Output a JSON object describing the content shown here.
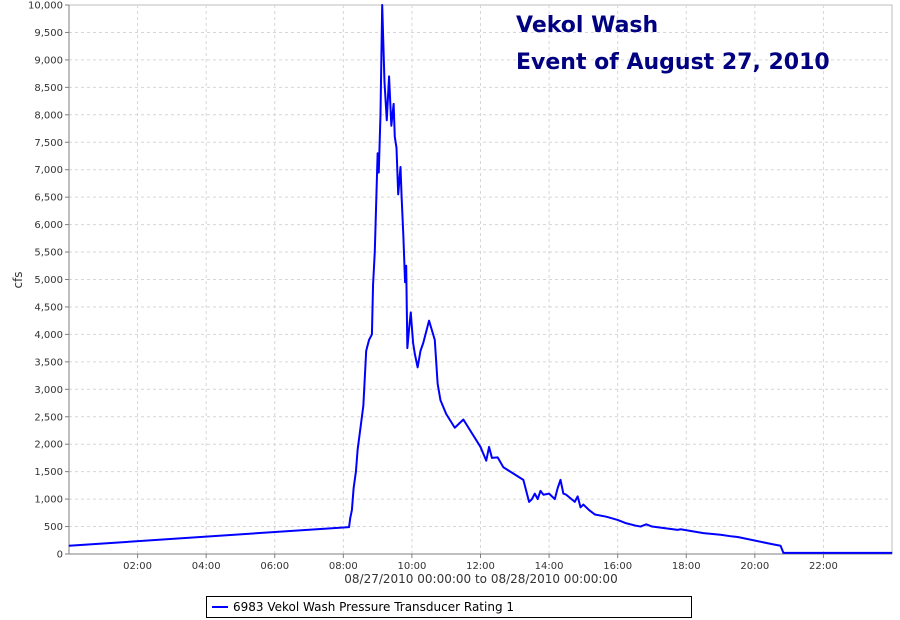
{
  "chart_data": {
    "type": "line",
    "title": "Vekol Wash",
    "subtitle": "Event of August 27, 2010",
    "xlabel": "08/27/2010 00:00:00 to 08/28/2010 00:00:00",
    "ylabel": "cfs",
    "xlim": [
      "00:00",
      "24:00"
    ],
    "ylim": [
      0,
      10000
    ],
    "x_ticks": [
      "02:00",
      "04:00",
      "06:00",
      "08:00",
      "10:00",
      "12:00",
      "14:00",
      "16:00",
      "18:00",
      "20:00",
      "22:00"
    ],
    "y_ticks": [
      "0",
      "500",
      "1,000",
      "1,500",
      "2,000",
      "2,500",
      "3,000",
      "3,500",
      "4,000",
      "4,500",
      "5,000",
      "5,500",
      "6,000",
      "6,500",
      "7,000",
      "7,500",
      "8,000",
      "8,500",
      "9,000",
      "9,500",
      "10,000"
    ],
    "grid": true,
    "legend_position": "bottom",
    "series": [
      {
        "name": "6983 Vekol Wash Pressure Transducer Rating 1",
        "color": "#0000ff",
        "x": [
          "00:00",
          "08:10",
          "08:12",
          "08:15",
          "08:18",
          "08:22",
          "08:25",
          "08:30",
          "08:35",
          "08:40",
          "08:45",
          "08:50",
          "08:52",
          "08:55",
          "09:00",
          "09:02",
          "09:05",
          "09:08",
          "09:12",
          "09:16",
          "09:20",
          "09:24",
          "09:28",
          "09:30",
          "09:33",
          "09:36",
          "09:40",
          "09:42",
          "09:45",
          "09:48",
          "09:50",
          "09:52",
          "09:55",
          "09:58",
          "10:02",
          "10:05",
          "10:10",
          "10:15",
          "10:20",
          "10:30",
          "10:40",
          "10:45",
          "10:50",
          "11:00",
          "11:15",
          "11:30",
          "12:00",
          "12:10",
          "12:15",
          "12:20",
          "12:30",
          "12:40",
          "13:15",
          "13:20",
          "13:25",
          "13:30",
          "13:35",
          "13:40",
          "13:45",
          "13:50",
          "14:00",
          "14:05",
          "14:10",
          "14:15",
          "14:20",
          "14:25",
          "14:30",
          "14:45",
          "14:50",
          "14:55",
          "15:00",
          "15:10",
          "15:20",
          "15:40",
          "16:00",
          "16:15",
          "16:30",
          "16:40",
          "16:50",
          "17:00",
          "17:45",
          "17:50",
          "18:30",
          "19:00",
          "19:20",
          "19:30",
          "20:30",
          "20:45",
          "20:50",
          "24:00"
        ],
        "values": [
          150,
          490,
          650,
          800,
          1200,
          1500,
          1900,
          2300,
          2700,
          3700,
          3900,
          4000,
          4900,
          5500,
          7300,
          6950,
          8000,
          10000,
          8600,
          7900,
          8700,
          7800,
          8200,
          7600,
          7400,
          6550,
          7050,
          6500,
          5800,
          4950,
          5250,
          3750,
          4100,
          4400,
          3850,
          3650,
          3400,
          3700,
          3850,
          4250,
          3900,
          3100,
          2800,
          2550,
          2300,
          2450,
          1950,
          1700,
          1950,
          1750,
          1760,
          1580,
          1350,
          1150,
          950,
          1000,
          1100,
          1000,
          1150,
          1080,
          1100,
          1050,
          1000,
          1200,
          1350,
          1100,
          1080,
          950,
          1050,
          850,
          900,
          800,
          720,
          680,
          620,
          560,
          520,
          500,
          540,
          500,
          440,
          450,
          380,
          350,
          320,
          310,
          180,
          150,
          20,
          20
        ]
      }
    ]
  }
}
